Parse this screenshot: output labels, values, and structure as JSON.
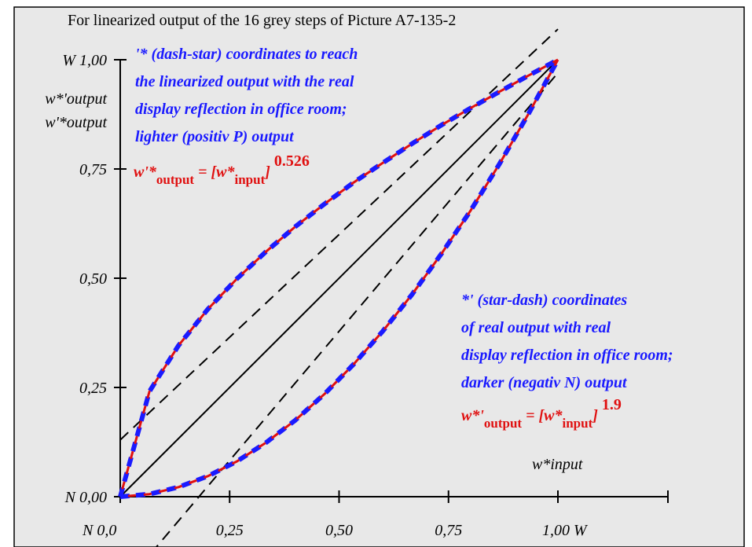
{
  "chart_data": {
    "type": "line",
    "title": "For linearized output of the 16 grey steps of Picture A7-135-2",
    "ylabel_lines": [
      "W 1,00",
      "w*'output",
      "w'*output"
    ],
    "xlabel": "w*input",
    "x_ticks": [
      "N  0,0",
      "0,25",
      "0,50",
      "0,75",
      "1,00  W"
    ],
    "y_ticks": [
      "N 0,00",
      "0,25",
      "0,50",
      "0,75"
    ],
    "xlim": [
      0,
      1
    ],
    "ylim": [
      0,
      1
    ],
    "grid": false,
    "background": "#e8e8e8",
    "series": [
      {
        "exponent": 0.526,
        "style": "dashed",
        "colors": [
          "#1a1aff",
          "#e01010"
        ],
        "x": [
          0,
          0.0667,
          0.1333,
          0.2,
          0.2667,
          0.3333,
          0.4,
          0.4667,
          0.5333,
          0.6,
          0.6667,
          0.7333,
          0.8,
          0.8667,
          0.9333,
          1.0
        ],
        "y": [
          0,
          0.241,
          0.346,
          0.429,
          0.499,
          0.561,
          0.618,
          0.67,
          0.719,
          0.764,
          0.808,
          0.85,
          0.889,
          0.927,
          0.964,
          1.0
        ]
      },
      {
        "exponent": 1.9,
        "style": "dashed",
        "colors": [
          "#1a1aff",
          "#e01010"
        ],
        "x": [
          0,
          0.0667,
          0.1333,
          0.2,
          0.2667,
          0.3333,
          0.4,
          0.4667,
          0.5333,
          0.6,
          0.6667,
          0.7333,
          0.8,
          0.8667,
          0.9333,
          1.0
        ],
        "y": [
          0,
          0.006,
          0.022,
          0.047,
          0.081,
          0.124,
          0.175,
          0.235,
          0.303,
          0.379,
          0.463,
          0.555,
          0.654,
          0.762,
          0.877,
          1.0
        ]
      }
    ],
    "reference_lines": [
      {
        "style": "solid",
        "x": [
          0,
          1
        ],
        "y": [
          0,
          1
        ]
      },
      {
        "style": "dashed",
        "x": [
          0,
          1
        ],
        "y": [
          0.13,
          1.07
        ]
      },
      {
        "style": "dashed",
        "x": [
          0.07,
          1
        ],
        "y": [
          -0.13,
          0.97
        ]
      }
    ],
    "annotations": {
      "upper_note": [
        "'* (dash-star) coordinates to reach",
        "the linearized output with the real",
        "display reflection in office room;",
        "lighter (positiv P) output"
      ],
      "upper_formula": {
        "lhs": "w'*",
        "lhs_sub": "output",
        "mid": " = [w*",
        "mid_sub": "input",
        "close": "]",
        "exp": "0.526"
      },
      "lower_note": [
        "*' (star-dash) coordinates",
        "of real output with real",
        "display reflection in office room;",
        "darker (negativ N) output"
      ],
      "lower_formula": {
        "lhs": "w*'",
        "lhs_sub": "output",
        "mid": " = [w*",
        "mid_sub": "input",
        "close": "]",
        "exp": "1.9"
      }
    }
  }
}
